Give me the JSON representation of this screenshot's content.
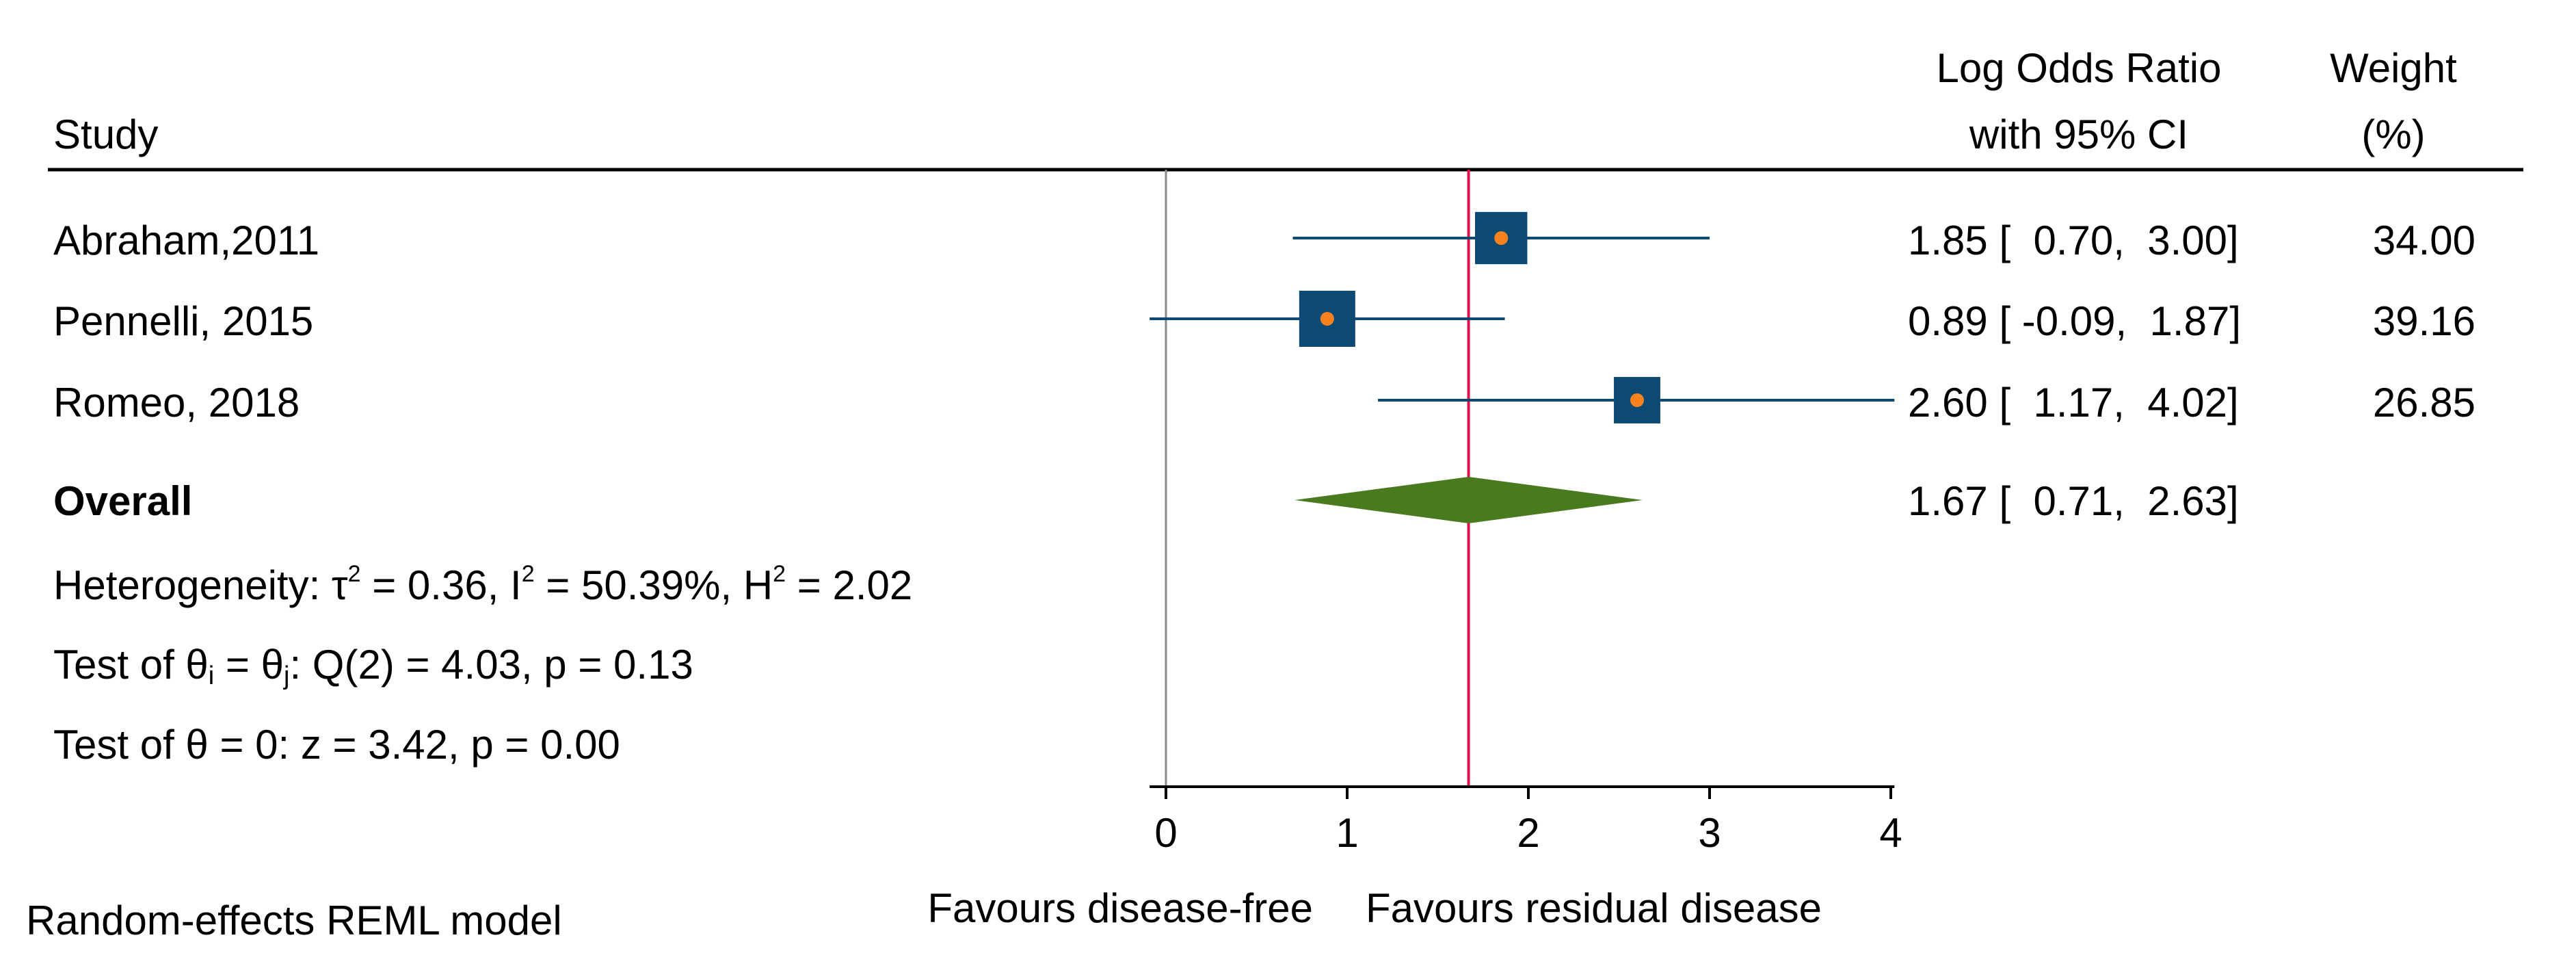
{
  "chart_data": {
    "type": "forest",
    "headers": {
      "study": "Study",
      "effect_line1": "Log Odds Ratio",
      "effect_line2": "with 95% CI",
      "weight_line1": "Weight",
      "weight_line2": "(%)"
    },
    "studies": [
      {
        "name": "Abraham,2011",
        "estimate": 1.85,
        "lower": 0.7,
        "upper": 3.0,
        "ci_text": "1.85 [  0.70,  3.00]",
        "weight": 34.0,
        "weight_text": "34.00"
      },
      {
        "name": "Pennelli, 2015",
        "estimate": 0.89,
        "lower": -0.09,
        "upper": 1.87,
        "ci_text": "0.89 [ -0.09,  1.87]",
        "weight": 39.16,
        "weight_text": "39.16"
      },
      {
        "name": "Romeo, 2018",
        "estimate": 2.6,
        "lower": 1.17,
        "upper": 4.02,
        "ci_text": "2.60 [  1.17,  4.02]",
        "weight": 26.85,
        "weight_text": "26.85"
      }
    ],
    "overall": {
      "label": "Overall",
      "estimate": 1.67,
      "lower": 0.71,
      "upper": 2.63,
      "ci_text": "1.67 [  0.71,  2.63]"
    },
    "heterogeneity": {
      "prefix": "Heterogeneity: τ",
      "tau2_sup": "2",
      "tau2_text": " = 0.36, I",
      "i2_sup": "2",
      "i2_text": " = 50.39%, H",
      "h2_sup": "2",
      "h2_text": " = 2.02"
    },
    "q_test": {
      "prefix": "Test of θ",
      "sub_i": "i",
      "mid": " = θ",
      "sub_j": "j",
      "suffix": ": Q(2) = 4.03, p = 0.13"
    },
    "z_test": "Test of θ = 0: z = 3.42, p = 0.00",
    "model_note": "Random-effects REML model",
    "x_axis": {
      "min": -0.09,
      "max": 4.02,
      "ticks": [
        0,
        1,
        2,
        3,
        4
      ],
      "tick_labels": [
        "0",
        "1",
        "2",
        "3",
        "4"
      ],
      "label_left": "Favours disease-free",
      "label_right": "Favours residual disease"
    },
    "no_effect_line": 0,
    "overall_line": 1.67,
    "colors": {
      "marker": "#0d4a73",
      "center_dot": "#f5821f",
      "ci_line": "#0d4a73",
      "diamond": "#4a7a1f",
      "overall_line": "#e0114a",
      "null_line": "#888888",
      "axis": "#000000"
    }
  }
}
